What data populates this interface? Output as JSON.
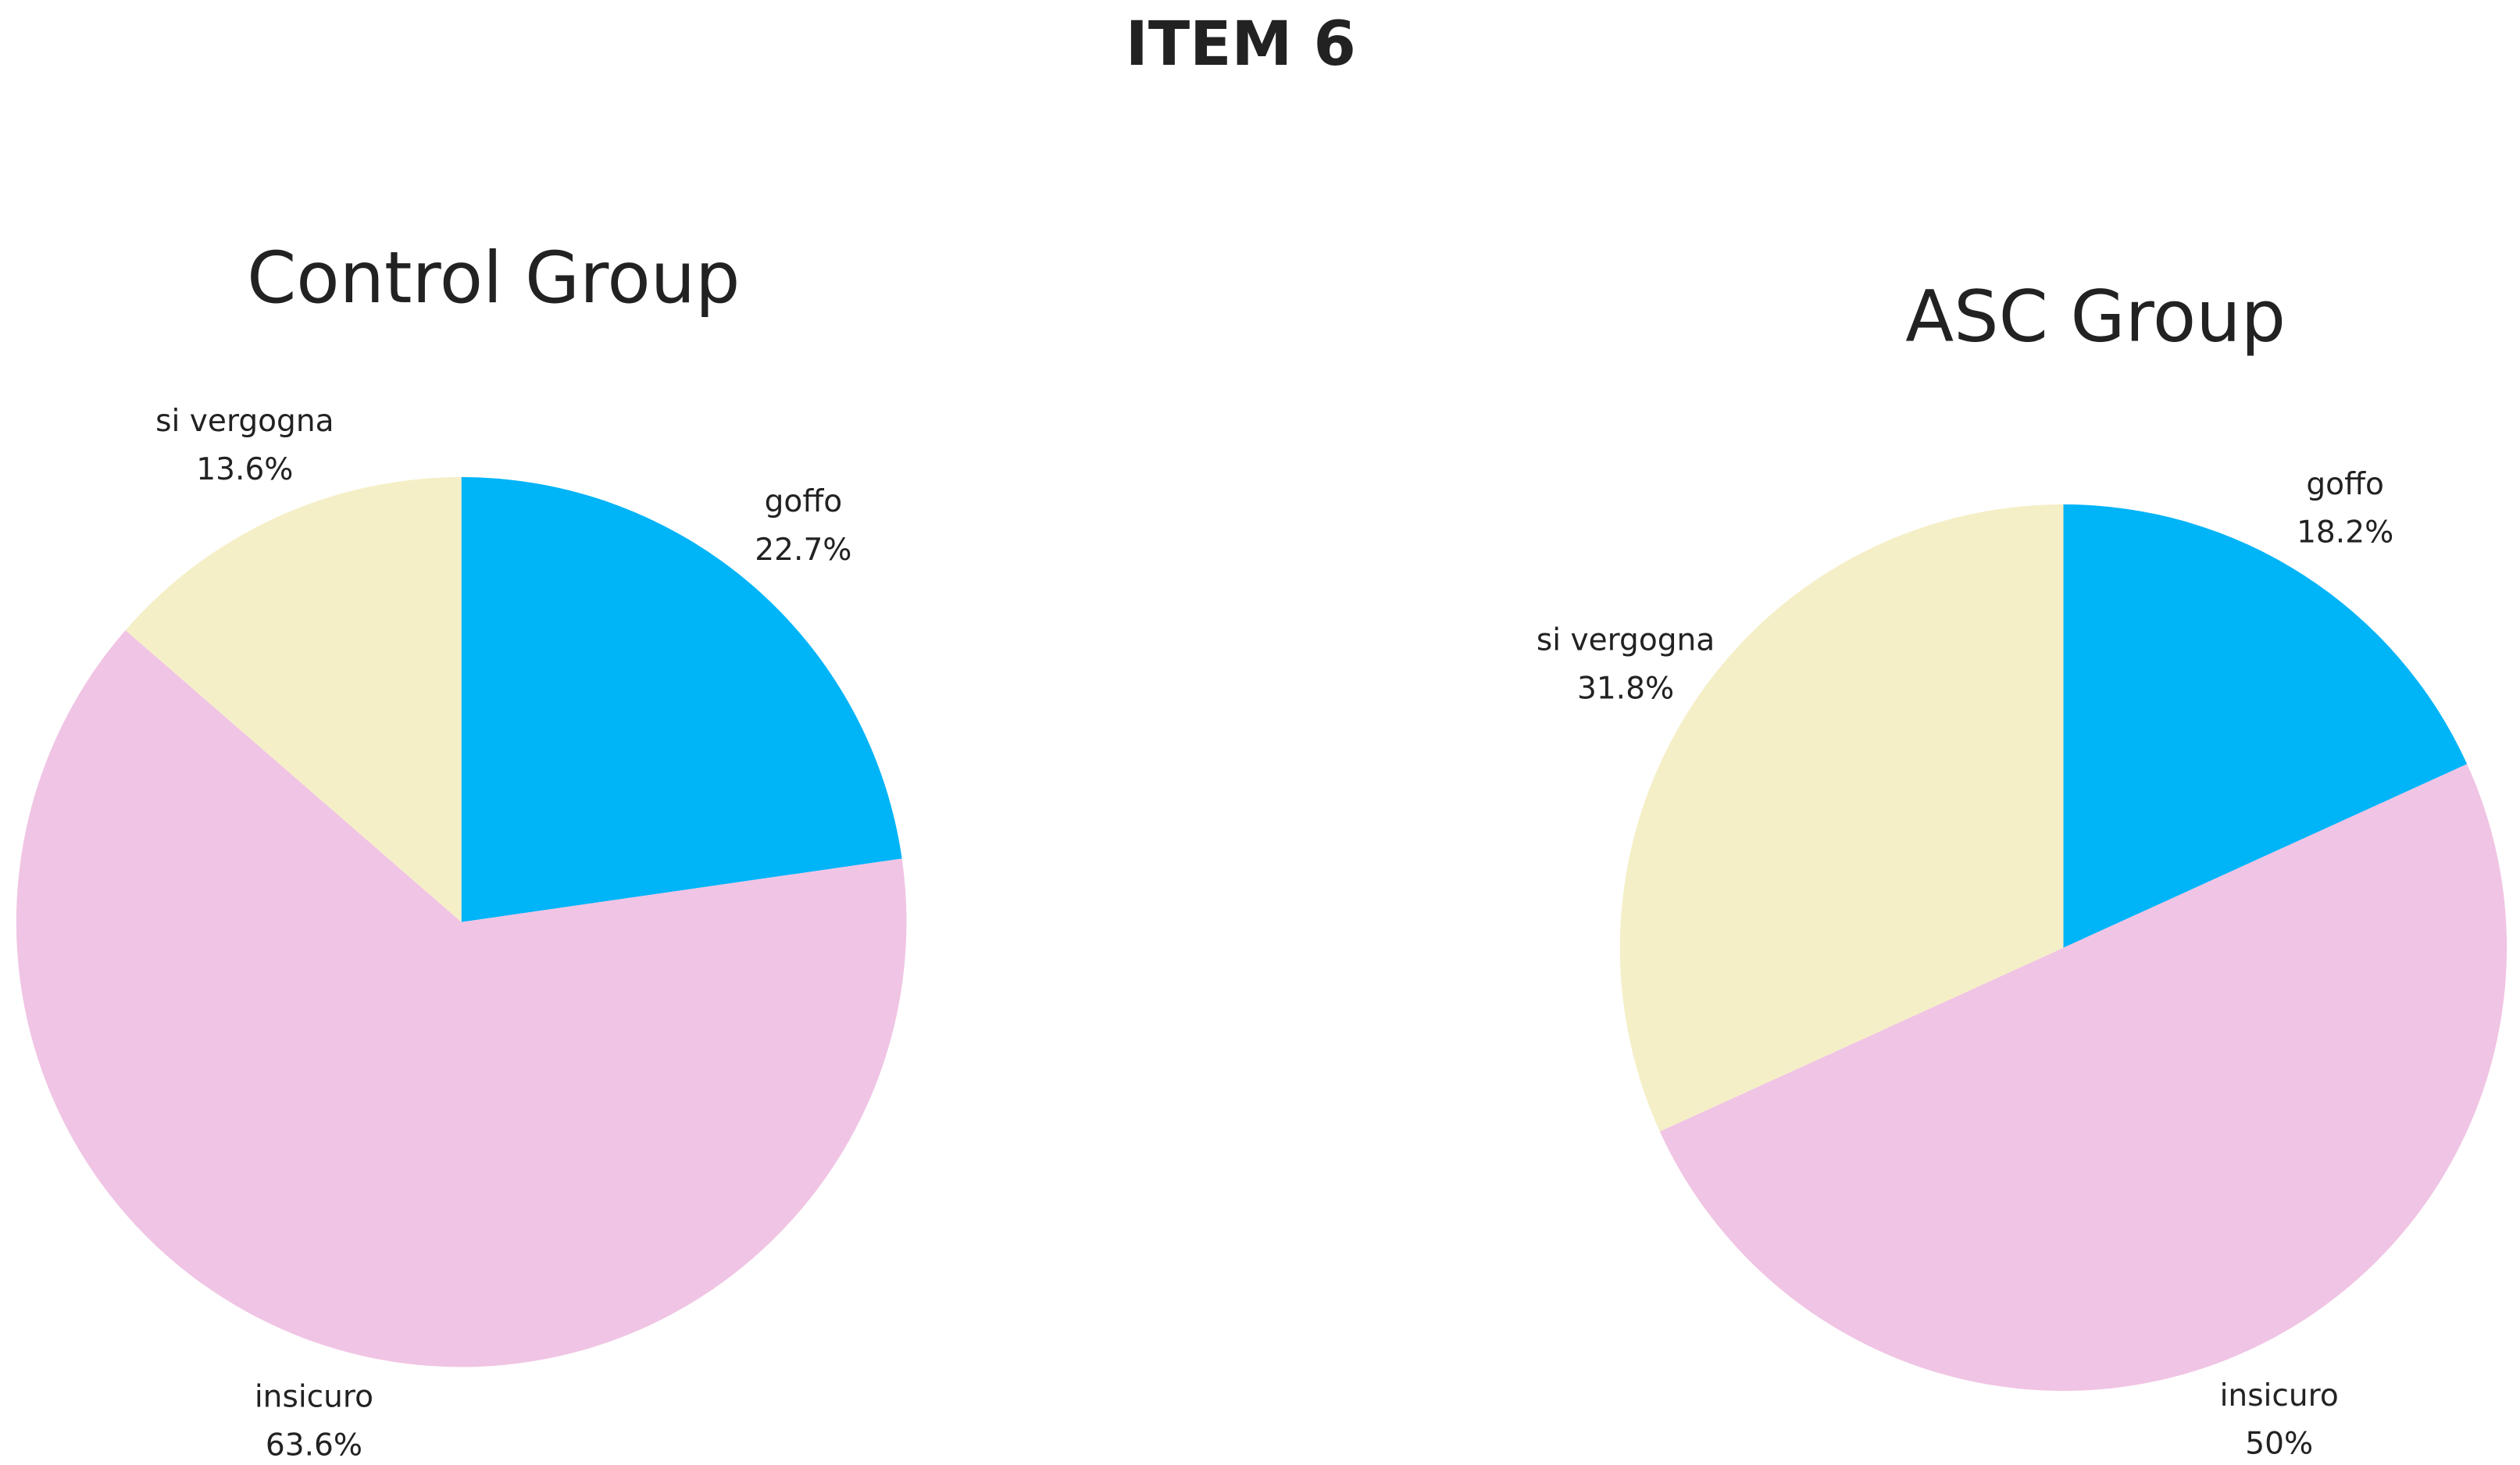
{
  "title": "ITEM 6",
  "chart_data": [
    {
      "type": "pie",
      "title": "Control Group",
      "categories": [
        "goffo",
        "insicuro",
        "si vergogna"
      ],
      "values": [
        22.7,
        63.6,
        13.6
      ],
      "value_labels": [
        "22.7%",
        "63.6%",
        "13.6%"
      ],
      "colors": [
        "#00b4f8",
        "#f0c4e4",
        "#f5efc8"
      ]
    },
    {
      "type": "pie",
      "title": "ASC Group",
      "categories": [
        "goffo",
        "insicuro",
        "si vergogna"
      ],
      "values": [
        18.2,
        50,
        31.8
      ],
      "value_labels": [
        "18.2%",
        "50%",
        "31.8%"
      ],
      "colors": [
        "#00b4f8",
        "#f0c4e4",
        "#f5efc8"
      ]
    }
  ]
}
